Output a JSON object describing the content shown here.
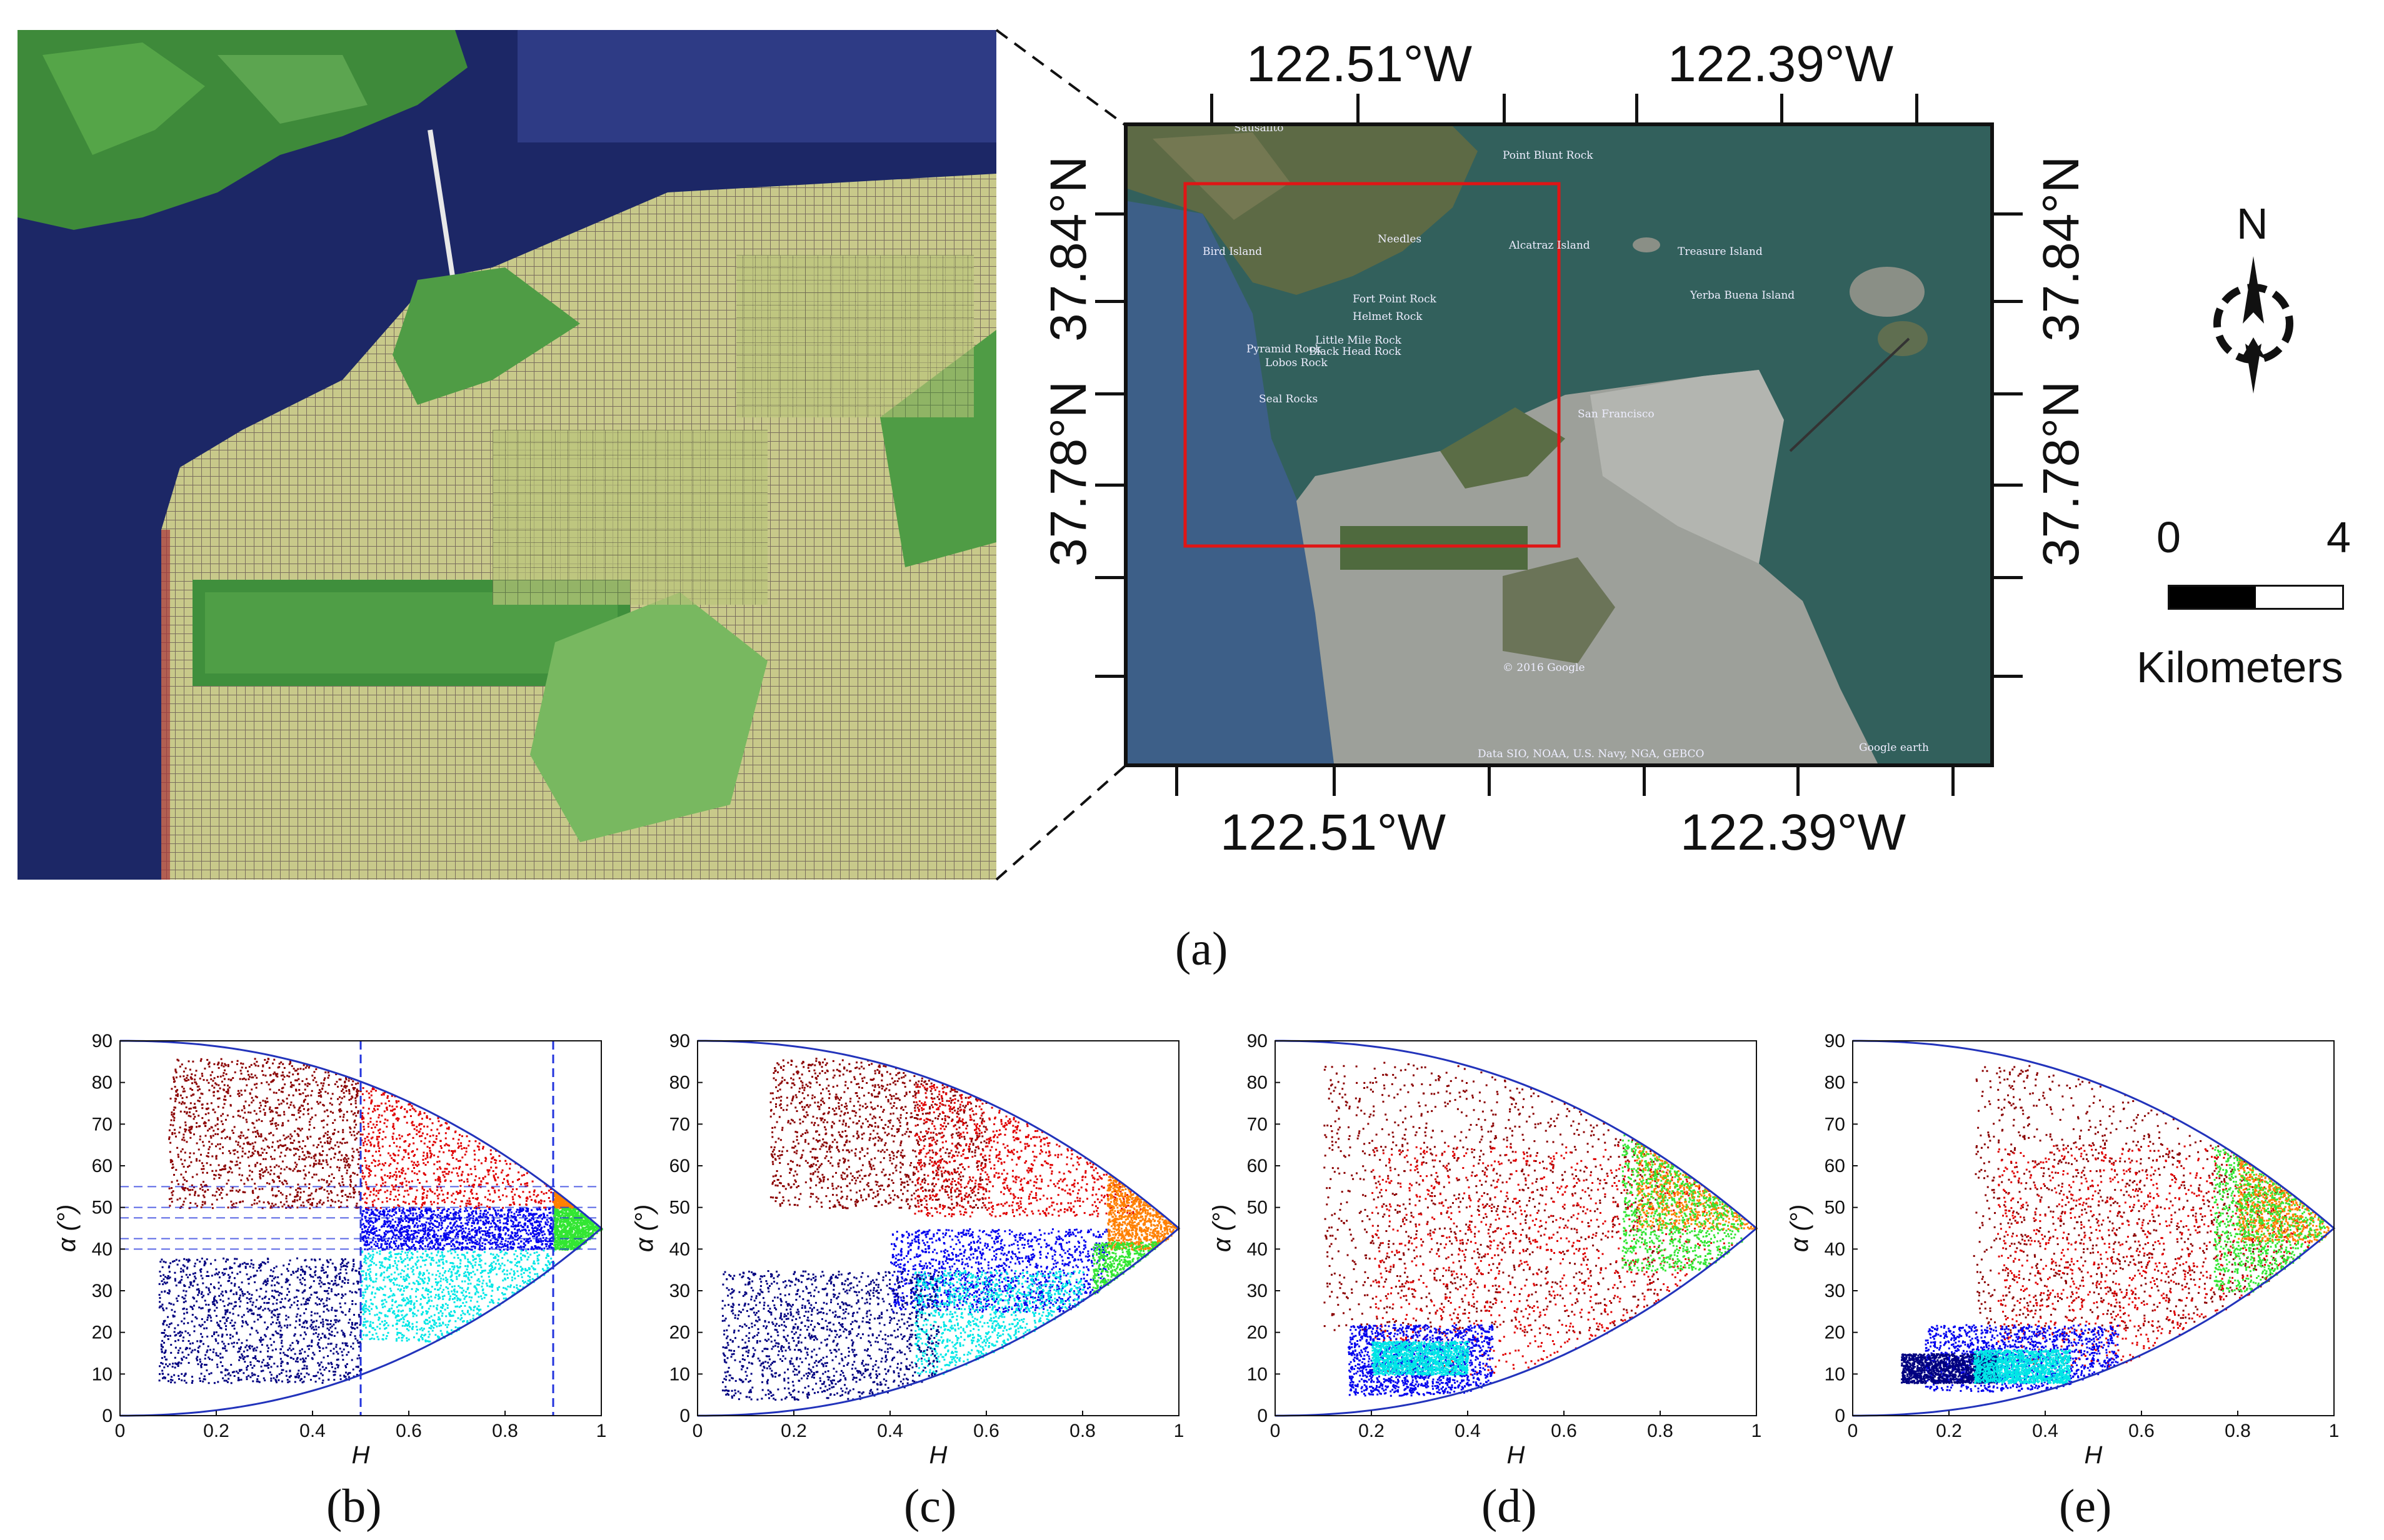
{
  "panel_a": {
    "label": "(a)",
    "map": {
      "top_lon_labels": [
        "122.51°W",
        "122.39°W"
      ],
      "bottom_lon_labels": [
        "122.51°W",
        "122.39°W"
      ],
      "left_lat_labels": [
        "37.84°N",
        "37.78°N"
      ],
      "right_lat_labels": [
        "37.84°N",
        "37.78°N"
      ],
      "place_labels": [
        "Sausalito",
        "Point Blunt Rock",
        "Needles",
        "Alcatraz Island",
        "Treasure Island",
        "Bird Island",
        "Yerba Buena Island",
        "Fort Point Rock",
        "Helmet Rock",
        "Little Mile Rock",
        "Pyramid Rock",
        "Black Head Rock",
        "Lobos Rock",
        "Seal Rocks",
        "San Francisco",
        "© 2016 Google",
        "Data SIO, NOAA, U.S. Navy, NGA, GEBCO",
        "Google earth"
      ],
      "frame_color": "#e01515"
    },
    "north_label": "N",
    "scale": {
      "start": "0",
      "end": "4",
      "unit": "Kilometers"
    }
  },
  "plots": [
    {
      "label": "(b)",
      "xlabel": "H",
      "ylabel": "α (°)"
    },
    {
      "label": "(c)",
      "xlabel": "H",
      "ylabel": "α (°)"
    },
    {
      "label": "(d)",
      "xlabel": "H",
      "ylabel": "α (°)"
    },
    {
      "label": "(e)",
      "xlabel": "H",
      "ylabel": "α (°)"
    }
  ],
  "chart_data": [
    {
      "type": "scatter",
      "xlabel": "H",
      "ylabel": "α (°)",
      "xlim": [
        0,
        1
      ],
      "ylim": [
        0,
        90
      ],
      "x_ticks": [
        "0",
        "0.2",
        "0.4",
        "0.6",
        "0.8",
        "1"
      ],
      "y_ticks": [
        "0",
        "10",
        "20",
        "30",
        "40",
        "50",
        "60",
        "70",
        "80",
        "90"
      ],
      "zone_boundaries": {
        "H": [
          0.5,
          0.9
        ],
        "alpha": [
          40,
          42.5,
          47.5,
          50,
          55
        ]
      },
      "clusters": [
        {
          "color": "#8b0000",
          "H_range": [
            0.1,
            0.5
          ],
          "alpha_range": [
            50,
            86
          ]
        },
        {
          "color": "#e00000",
          "H_range": [
            0.5,
            0.9
          ],
          "alpha_range": [
            50,
            83
          ]
        },
        {
          "color": "#0000ee",
          "H_range": [
            0.5,
            0.9
          ],
          "alpha_range": [
            40,
            50
          ]
        },
        {
          "color": "#00e6e6",
          "H_range": [
            0.5,
            0.9
          ],
          "alpha_range": [
            18,
            40
          ]
        },
        {
          "color": "#000080",
          "H_range": [
            0.08,
            0.5
          ],
          "alpha_range": [
            8,
            38
          ]
        },
        {
          "color": "#ff8000",
          "H_range": [
            0.9,
            1.0
          ],
          "alpha_range": [
            50,
            55
          ]
        },
        {
          "color": "#33e633",
          "H_range": [
            0.9,
            1.0
          ],
          "alpha_range": [
            40,
            50
          ]
        }
      ]
    },
    {
      "type": "scatter",
      "xlabel": "H",
      "ylabel": "α (°)",
      "xlim": [
        0,
        1
      ],
      "ylim": [
        0,
        90
      ],
      "x_ticks": [
        "0",
        "0.2",
        "0.4",
        "0.6",
        "0.8",
        "1"
      ],
      "y_ticks": [
        "0",
        "10",
        "20",
        "30",
        "40",
        "50",
        "60",
        "70",
        "80",
        "90"
      ],
      "clusters": [
        {
          "color": "#8b0000",
          "H_range": [
            0.15,
            0.6
          ],
          "alpha_range": [
            50,
            86
          ]
        },
        {
          "color": "#e00000",
          "H_range": [
            0.45,
            0.92
          ],
          "alpha_range": [
            48,
            80
          ]
        },
        {
          "color": "#0000ee",
          "H_range": [
            0.4,
            0.85
          ],
          "alpha_range": [
            25,
            45
          ]
        },
        {
          "color": "#00e6e6",
          "H_range": [
            0.45,
            0.8
          ],
          "alpha_range": [
            10,
            35
          ]
        },
        {
          "color": "#000080",
          "H_range": [
            0.05,
            0.5
          ],
          "alpha_range": [
            4,
            35
          ]
        },
        {
          "color": "#ff8000",
          "H_range": [
            0.85,
            1.0
          ],
          "alpha_range": [
            40,
            58
          ]
        },
        {
          "color": "#33e633",
          "H_range": [
            0.82,
            0.97
          ],
          "alpha_range": [
            20,
            42
          ]
        }
      ]
    },
    {
      "type": "scatter",
      "xlabel": "H",
      "ylabel": "α (°)",
      "xlim": [
        0,
        1
      ],
      "ylim": [
        0,
        90
      ],
      "x_ticks": [
        "0",
        "0.2",
        "0.4",
        "0.6",
        "0.8",
        "1"
      ],
      "y_ticks": [
        "0",
        "10",
        "20",
        "30",
        "40",
        "50",
        "60",
        "70",
        "80",
        "90"
      ],
      "clusters": [
        {
          "color": "#8b0000",
          "H_range": [
            0.1,
            0.8
          ],
          "alpha_range": [
            20,
            85
          ]
        },
        {
          "color": "#e00000",
          "H_range": [
            0.2,
            0.95
          ],
          "alpha_range": [
            10,
            65
          ]
        },
        {
          "color": "#0000ee",
          "H_range": [
            0.15,
            0.45
          ],
          "alpha_range": [
            5,
            22
          ]
        },
        {
          "color": "#00e6e6",
          "H_range": [
            0.2,
            0.4
          ],
          "alpha_range": [
            10,
            18
          ]
        },
        {
          "color": "#ff8000",
          "H_range": [
            0.75,
            1.0
          ],
          "alpha_range": [
            45,
            72
          ]
        },
        {
          "color": "#33e633",
          "H_range": [
            0.72,
            0.97
          ],
          "alpha_range": [
            35,
            70
          ]
        }
      ]
    },
    {
      "type": "scatter",
      "xlabel": "H",
      "ylabel": "α (°)",
      "xlim": [
        0,
        1
      ],
      "ylim": [
        0,
        90
      ],
      "x_ticks": [
        "0",
        "0.2",
        "0.4",
        "0.6",
        "0.8",
        "1"
      ],
      "y_ticks": [
        "0",
        "10",
        "20",
        "30",
        "40",
        "50",
        "60",
        "70",
        "80",
        "90"
      ],
      "clusters": [
        {
          "color": "#8b0000",
          "H_range": [
            0.25,
            0.9
          ],
          "alpha_range": [
            20,
            85
          ]
        },
        {
          "color": "#e00000",
          "H_range": [
            0.3,
            0.95
          ],
          "alpha_range": [
            12,
            65
          ]
        },
        {
          "color": "#0000ee",
          "H_range": [
            0.15,
            0.55
          ],
          "alpha_range": [
            6,
            22
          ]
        },
        {
          "color": "#000080",
          "H_range": [
            0.1,
            0.3
          ],
          "alpha_range": [
            8,
            15
          ]
        },
        {
          "color": "#00e6e6",
          "H_range": [
            0.25,
            0.45
          ],
          "alpha_range": [
            8,
            16
          ]
        },
        {
          "color": "#ff8000",
          "H_range": [
            0.8,
            1.0
          ],
          "alpha_range": [
            42,
            68
          ]
        },
        {
          "color": "#33e633",
          "H_range": [
            0.75,
            0.98
          ],
          "alpha_range": [
            30,
            65
          ]
        }
      ]
    }
  ]
}
